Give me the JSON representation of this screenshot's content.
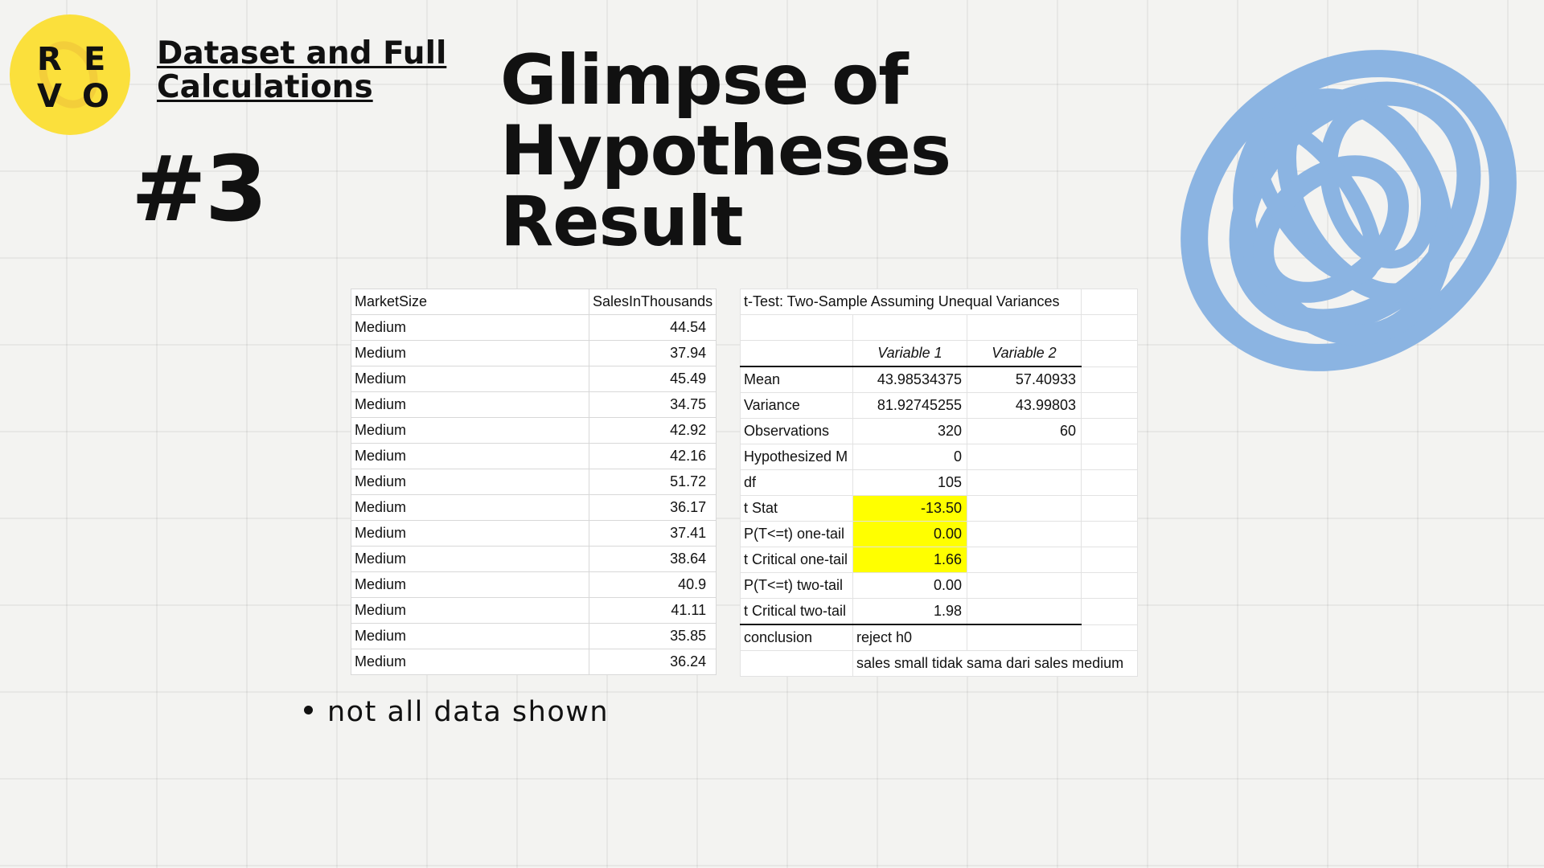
{
  "logo": {
    "letters": [
      "R",
      "E",
      "V",
      "O"
    ]
  },
  "header": {
    "link_title": "Dataset and Full Calculations",
    "number": "#3",
    "title_lines": [
      "Glimpse of",
      "Hypotheses",
      "Result"
    ]
  },
  "dataset": {
    "columns": [
      "MarketSize",
      "SalesInThousands"
    ],
    "rows": [
      [
        "Medium",
        "44.54"
      ],
      [
        "Medium",
        "37.94"
      ],
      [
        "Medium",
        "45.49"
      ],
      [
        "Medium",
        "34.75"
      ],
      [
        "Medium",
        "42.92"
      ],
      [
        "Medium",
        "42.16"
      ],
      [
        "Medium",
        "51.72"
      ],
      [
        "Medium",
        "36.17"
      ],
      [
        "Medium",
        "37.41"
      ],
      [
        "Medium",
        "38.64"
      ],
      [
        "Medium",
        "40.9"
      ],
      [
        "Medium",
        "41.11"
      ],
      [
        "Medium",
        "35.85"
      ],
      [
        "Medium",
        "36.24"
      ]
    ]
  },
  "ttest": {
    "title": "t-Test: Two-Sample Assuming Unequal Variances",
    "col_headers": [
      "Variable 1",
      "Variable 2"
    ],
    "rows": [
      {
        "label": "Mean",
        "v1": "43.98534375",
        "v2": "57.40933",
        "highlight": false
      },
      {
        "label": "Variance",
        "v1": "81.92745255",
        "v2": "43.99803",
        "highlight": false
      },
      {
        "label": "Observations",
        "v1": "320",
        "v2": "60",
        "highlight": false
      },
      {
        "label": "Hypothesized M",
        "v1": "0",
        "v2": "",
        "highlight": false
      },
      {
        "label": "df",
        "v1": "105",
        "v2": "",
        "highlight": false
      },
      {
        "label": "t Stat",
        "v1": "-13.50",
        "v2": "",
        "highlight": true
      },
      {
        "label": "P(T<=t) one-tail",
        "v1": "0.00",
        "v2": "",
        "highlight": true
      },
      {
        "label": "t Critical one-tail",
        "v1": "1.66",
        "v2": "",
        "highlight": true
      },
      {
        "label": "P(T<=t) two-tail",
        "v1": "0.00",
        "v2": "",
        "highlight": false
      },
      {
        "label": "t Critical two-tail",
        "v1": "1.98",
        "v2": "",
        "highlight": false
      }
    ],
    "conclusion_label": "conclusion",
    "conclusion_value": "reject h0",
    "conclusion_note": "sales small tidak sama dari sales medium",
    "highlight_color": "#ffff00"
  },
  "note": "not all data shown",
  "colors": {
    "logo": "#fbe03c",
    "scribble": "#8bb4e2"
  }
}
